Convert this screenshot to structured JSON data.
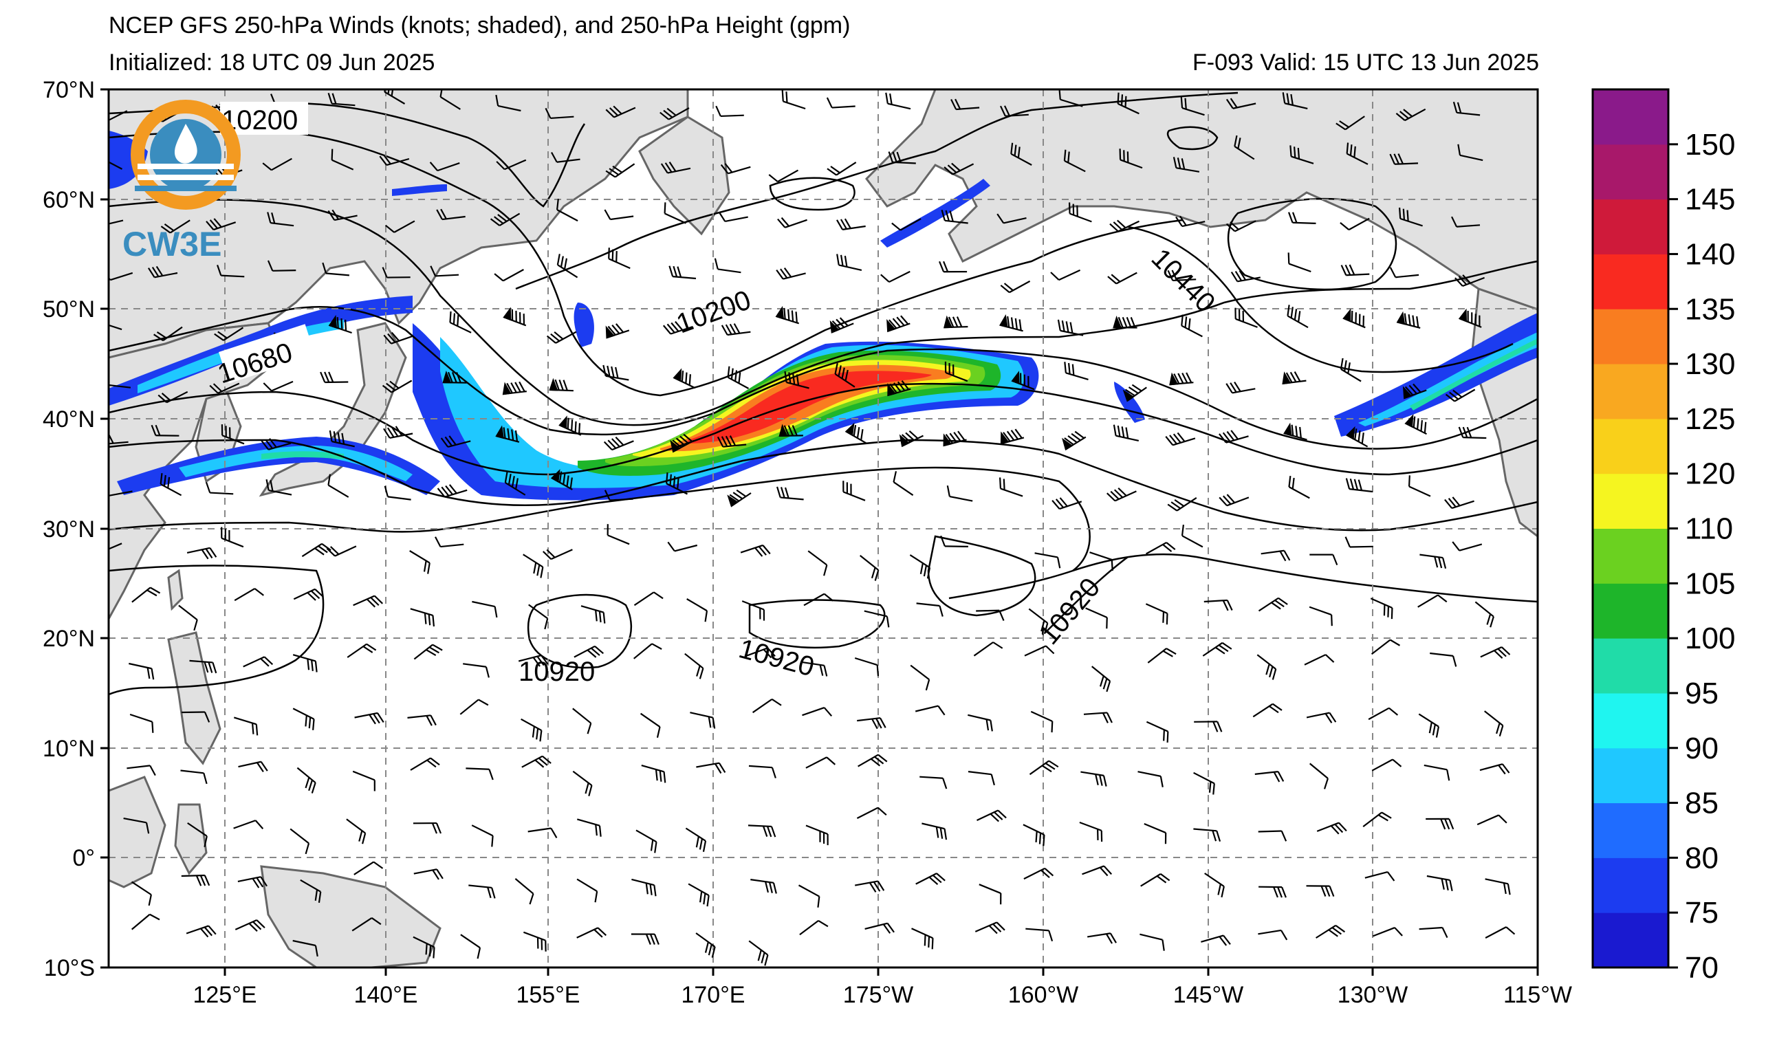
{
  "header": {
    "title": "NCEP GFS 250-hPa Winds (knots; shaded), and 250-hPa Height (gpm)",
    "initialized": "Initialized: 18 UTC 09 Jun 2025",
    "valid": "F-093  Valid: 15 UTC 13 Jun 2025"
  },
  "logo": {
    "text": "CW3E",
    "icon": "cw3e-logo-icon",
    "ring_color": "#f39a21",
    "blue_color": "#3a8dbf"
  },
  "axes": {
    "lat_labels": [
      "70°N",
      "60°N",
      "50°N",
      "40°N",
      "30°N",
      "20°N",
      "10°N",
      "0°",
      "10°S"
    ],
    "lon_labels": [
      "125°E",
      "140°E",
      "155°E",
      "170°E",
      "175°W",
      "160°W",
      "145°W",
      "130°W",
      "115°W"
    ]
  },
  "map": {
    "lon_range": [
      110,
      245
    ],
    "lat_range": [
      -10,
      70
    ],
    "land_color": "#e1e1e1",
    "coast_color": "#666666",
    "grid_color": "#888888",
    "contour_color": "#000000"
  },
  "contour_labels": [
    {
      "text": "10200"
    },
    {
      "text": "10200"
    },
    {
      "text": "10680"
    },
    {
      "text": "10440"
    },
    {
      "text": "10920"
    },
    {
      "text": "10920"
    },
    {
      "text": "10920"
    }
  ],
  "colorbar": {
    "labels": [
      "70",
      "75",
      "80",
      "85",
      "90",
      "95",
      "100",
      "105",
      "110",
      "120",
      "125",
      "130",
      "135",
      "140",
      "145",
      "150"
    ],
    "colors": [
      "#1a1ad0",
      "#1c3cf0",
      "#1f6cff",
      "#1fc8ff",
      "#1ff5f0",
      "#20dca8",
      "#1eb52a",
      "#6bd120",
      "#f5f520",
      "#f9d01a",
      "#f9a820",
      "#f97d20",
      "#f92a20",
      "#cf1a3a",
      "#a8186a",
      "#8a1a8a"
    ]
  }
}
